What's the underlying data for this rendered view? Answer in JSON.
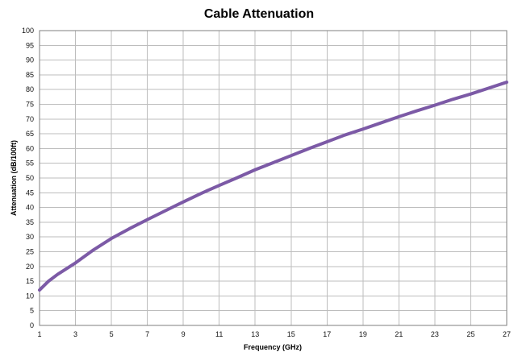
{
  "chart_data": {
    "type": "line",
    "title": "Cable Attenuation",
    "xlabel": "Frequency (GHz)",
    "ylabel": "Attenuation (dB/100ft)",
    "x_ticks": [
      "1",
      "3",
      "5",
      "7",
      "9",
      "11",
      "13",
      "15",
      "17",
      "19",
      "21",
      "23",
      "25",
      "27"
    ],
    "y_ticks": [
      "0",
      "5",
      "10",
      "15",
      "20",
      "25",
      "30",
      "35",
      "40",
      "45",
      "50",
      "55",
      "60",
      "65",
      "70",
      "75",
      "80",
      "85",
      "90",
      "95",
      "100"
    ],
    "xlim": [
      1,
      27
    ],
    "ylim": [
      0,
      100
    ],
    "grid": true,
    "series": [
      {
        "color": "#7c5aa6",
        "x": [
          1,
          1.5,
          2,
          3,
          4,
          5,
          6,
          7,
          8,
          9,
          10,
          11,
          12,
          13,
          14,
          15,
          16,
          17,
          18,
          19,
          20,
          21,
          22,
          23,
          24,
          25,
          26,
          27
        ],
        "y": [
          12.0,
          15.0,
          17.3,
          21.2,
          25.6,
          29.5,
          32.8,
          35.9,
          38.9,
          41.9,
          44.8,
          47.5,
          50.1,
          52.8,
          55.2,
          57.6,
          60.0,
          62.3,
          64.6,
          66.6,
          68.7,
          70.8,
          72.8,
          74.7,
          76.7,
          78.5,
          80.5,
          82.5
        ]
      }
    ]
  }
}
